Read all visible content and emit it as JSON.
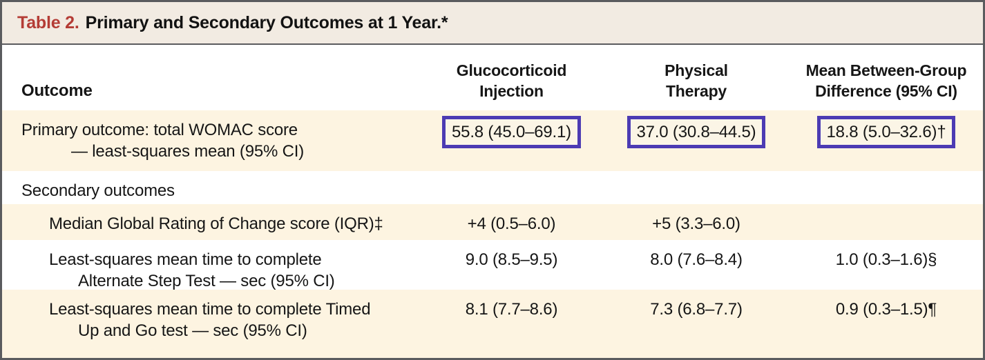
{
  "table": {
    "title_prefix": "Table 2.",
    "title_text": "Primary and Secondary Outcomes at 1 Year.*",
    "columns": {
      "outcome": "Outcome",
      "glucocorticoid": "Glucocorticoid\nInjection",
      "physical_therapy": "Physical\nTherapy",
      "difference": "Mean Between-Group\nDifference (95% CI)"
    },
    "rows": [
      {
        "label_line1": "Primary outcome: total WOMAC score",
        "label_line2": "— least-squares mean (95% CI)",
        "glucocorticoid": "55.8 (45.0–69.1)",
        "physical_therapy": "37.0 (30.8–44.5)",
        "difference": "18.8 (5.0–32.6)†"
      },
      {
        "label_line1": "Secondary outcomes"
      },
      {
        "label_line1": "Median Global Rating of Change score (IQR)‡",
        "glucocorticoid": "+4 (0.5–6.0)",
        "physical_therapy": "+5 (3.3–6.0)",
        "difference": ""
      },
      {
        "label_line1": "Least-squares mean time to complete",
        "label_line2": "Alternate Step Test — sec (95% CI)",
        "glucocorticoid": "9.0 (8.5–9.5)",
        "physical_therapy": "8.0 (7.6–8.4)",
        "difference": "1.0 (0.3–1.6)§"
      },
      {
        "label_line1": "Least-squares mean time to complete Timed",
        "label_line2": "Up and Go test — sec (95% CI)",
        "glucocorticoid": "8.1 (7.7–8.6)",
        "physical_therapy": "7.3 (6.8–7.7)",
        "difference": "0.9 (0.3–1.5)¶"
      }
    ],
    "colors": {
      "accent_red": "#b43c35",
      "highlight_box_border": "#4c3bb3",
      "row_shade": "#fdf4e1",
      "title_bar_bg": "#f2ebe2",
      "outer_border": "#5a5b5e"
    }
  }
}
